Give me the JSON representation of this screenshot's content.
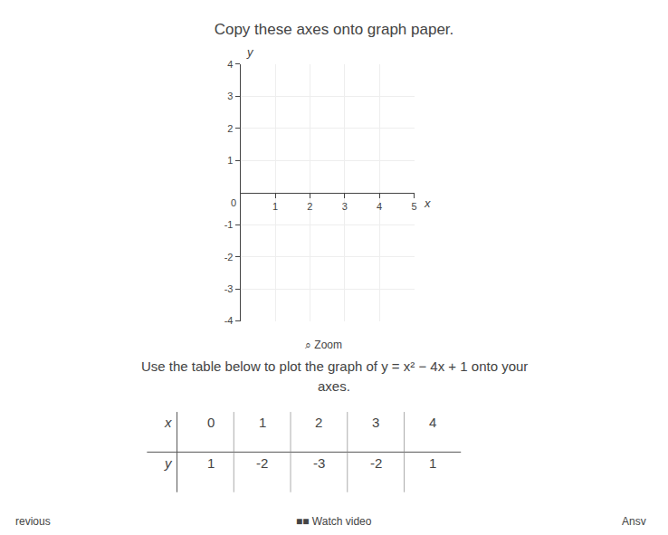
{
  "chart_data": {
    "type": "axes",
    "title": "Copy these axes onto graph paper.",
    "subtitle": [
      "Use the table below to plot the graph of y = x² − 4x + 1 onto your",
      "axes."
    ],
    "x_label": "x",
    "y_label": "y",
    "origin_label": "0",
    "xlim": [
      0,
      5
    ],
    "ylim": [
      -4,
      4
    ],
    "xticks": [
      1,
      2,
      3,
      4,
      5
    ],
    "yticks": [
      -4,
      -3,
      -2,
      -1,
      1,
      2,
      3,
      4
    ],
    "grid": true,
    "table": {
      "row_labels": [
        "x",
        "y"
      ],
      "x": [
        0,
        1,
        2,
        3,
        4
      ],
      "y": [
        1,
        -2,
        -3,
        -2,
        1
      ]
    },
    "annotations": [
      "⌕ Zoom",
      "revious",
      "■■ Watch video",
      "Ansv"
    ]
  }
}
